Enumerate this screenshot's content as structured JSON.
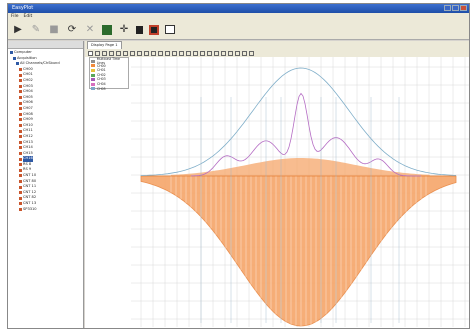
{
  "window": {
    "title": "EasyPlot"
  },
  "menu": {
    "items": [
      "File",
      "Edit"
    ]
  },
  "toolbar": {
    "icons": [
      "play-icon",
      "pen-icon",
      "record-icon",
      "refresh-icon",
      "stop-icon",
      "square-icon",
      "crosshair-icon",
      "block-icon",
      "record-dot-icon",
      "window-icon"
    ]
  },
  "sidebar": {
    "items": [
      {
        "label": "Computer",
        "icon": "blue"
      },
      {
        "label": "Acquisition",
        "icon": "blue"
      },
      {
        "label": "All Channels/ChSbund",
        "icon": "blue"
      },
      {
        "label": "CH00"
      },
      {
        "label": "CH01"
      },
      {
        "label": "CH02"
      },
      {
        "label": "CH03"
      },
      {
        "label": "CH04"
      },
      {
        "label": "CH05"
      },
      {
        "label": "CH06"
      },
      {
        "label": "CH07"
      },
      {
        "label": "CH08"
      },
      {
        "label": "CH09"
      },
      {
        "label": "CH10"
      },
      {
        "label": "CH11"
      },
      {
        "label": "CH12"
      },
      {
        "label": "CH13"
      },
      {
        "label": "CH14"
      },
      {
        "label": "CH15"
      },
      {
        "label": "CH16",
        "selected": true
      },
      {
        "label": "RS 8"
      },
      {
        "label": "RS 9"
      },
      {
        "label": "CNT 10"
      },
      {
        "label": "CNT 80"
      },
      {
        "label": "CNT 11"
      },
      {
        "label": "CNT 12"
      },
      {
        "label": "CNT 82"
      },
      {
        "label": "CNT 13"
      },
      {
        "label": "SP3310"
      }
    ]
  },
  "tabs": [
    {
      "label": "Display Page 1"
    }
  ],
  "legend": {
    "entries": [
      {
        "label": "Multicast Time Lines",
        "color": "#8e8e8e"
      },
      {
        "label": "CH00",
        "color": "#f08a3c"
      },
      {
        "label": "CH01",
        "color": "#e8c23a"
      },
      {
        "label": "CH02",
        "color": "#5aa55a"
      },
      {
        "label": "CH03",
        "color": "#a55ab5"
      },
      {
        "label": "CH04",
        "color": "#d86fbf"
      },
      {
        "label": "CH05",
        "color": "#7fa5c8"
      }
    ]
  },
  "colors": {
    "fill": "#f6a66a",
    "fill_dark": "#e8843e",
    "envelope": "#7faec9",
    "purple": "#b56dc4",
    "grid": "#d8d8d8"
  }
}
